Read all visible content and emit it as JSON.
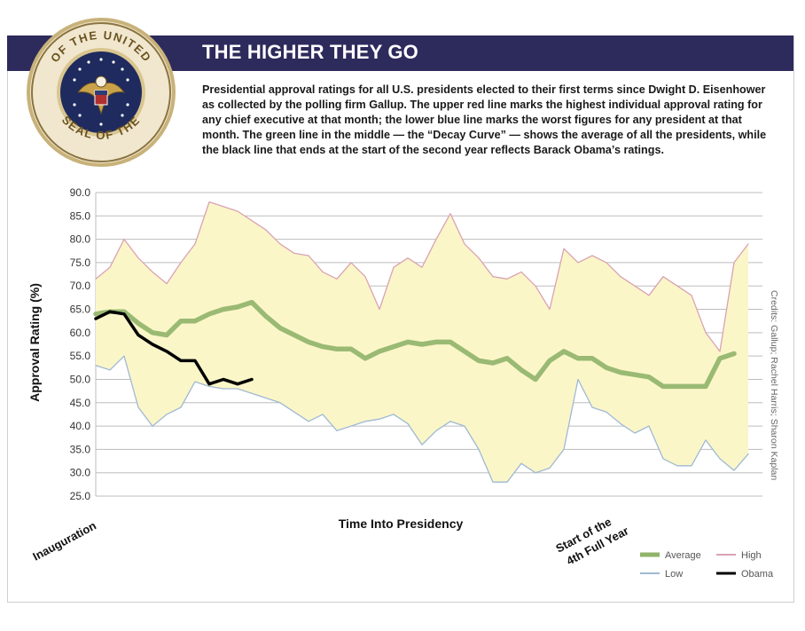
{
  "header": {
    "title": "THE HIGHER THEY GO",
    "description": "Presidential approval ratings for all U.S. presidents elected to their first terms since Dwight D. Eisenhower as collected by the polling firm Gallup. The upper red line marks the highest individual approval rating for any chief executive at that month; the lower blue line marks the worst figures for any president at that month. The green line in the middle — the “Decay Curve” — shows the average of all the presidents, while the black line that ends at the start of the second year reflects Barack Obama’s ratings.",
    "bg_color": "#2d2a5c"
  },
  "seal": {
    "text_top": "OF THE UNITED",
    "text_left": "PRESIDENT",
    "text_right": "STATES",
    "text_bottom": "SEAL OF THE",
    "icon": "presidential-seal-icon"
  },
  "credits": "Credits: Gallup; Rachel Harris; Sharon Kaplan",
  "x_annotations": {
    "inauguration": "Inauguration",
    "start4_line1": "Start of the",
    "start4_line2": "4th Full Year"
  },
  "colors": {
    "high": "#d9a3b3",
    "low": "#9fb9d3",
    "average": "#8fb46a",
    "obama": "#000000",
    "band_fill": "#fbf6c8"
  },
  "chart_data": {
    "type": "line",
    "title": "",
    "xlabel": "Time Into Presidency",
    "ylabel": "Approval Rating (%)",
    "ylim": [
      25,
      90
    ],
    "yticks": [
      "25.0",
      "30.0",
      "35.0",
      "40.0",
      "45.0",
      "50.0",
      "55.0",
      "60.0",
      "65.0",
      "70.0",
      "75.0",
      "80.0",
      "85.0",
      "90.0"
    ],
    "grid": true,
    "legend_position": "bottom-right",
    "x": [
      1,
      2,
      3,
      4,
      5,
      6,
      7,
      8,
      9,
      10,
      11,
      12,
      13,
      14,
      15,
      16,
      17,
      18,
      19,
      20,
      21,
      22,
      23,
      24,
      25,
      26,
      27,
      28,
      29,
      30,
      31,
      32,
      33,
      34,
      35,
      36,
      37,
      38,
      39,
      40,
      41,
      42,
      43,
      44,
      45,
      46,
      47,
      48
    ],
    "series": [
      {
        "name": "High",
        "color": "#d9a3b3",
        "values": [
          71.5,
          74,
          80,
          76,
          73,
          70.5,
          75,
          79,
          88,
          87,
          86,
          84,
          82,
          79,
          77,
          76.5,
          73,
          71.5,
          75,
          72,
          65,
          74,
          76,
          74,
          80,
          85.5,
          79,
          76,
          72,
          71.5,
          73,
          70,
          65,
          78,
          75,
          76.5,
          75,
          72,
          70,
          68,
          72,
          70,
          68,
          60,
          56,
          75,
          79,
          null
        ]
      },
      {
        "name": "Low",
        "color": "#9fb9d3",
        "values": [
          53,
          52,
          55,
          44,
          40,
          42.5,
          44,
          49.5,
          48.5,
          48,
          48,
          47,
          46,
          45,
          43,
          41,
          42.5,
          39,
          40,
          41,
          41.5,
          42.5,
          40.5,
          36,
          39,
          41,
          40,
          35,
          28,
          28,
          32,
          30,
          31,
          35,
          50,
          44,
          43,
          40.5,
          38.5,
          40,
          33,
          31.5,
          31.5,
          37,
          33,
          30.5,
          34,
          null
        ]
      },
      {
        "name": "Average",
        "color": "#8fb46a",
        "values": [
          64,
          64.5,
          64.5,
          62,
          60,
          59.5,
          62.5,
          62.5,
          64,
          65,
          65.5,
          66.5,
          63.5,
          61,
          59.5,
          58,
          57,
          56.5,
          56.5,
          54.5,
          56,
          57,
          58,
          57.5,
          58,
          58,
          56,
          54,
          53.5,
          54.5,
          52,
          50,
          54,
          56,
          54.5,
          54.5,
          52.5,
          51.5,
          51,
          50.5,
          48.5,
          48.5,
          48.5,
          48.5,
          54.5,
          55.5,
          null,
          null
        ]
      },
      {
        "name": "Obama",
        "color": "#000000",
        "values": [
          63,
          64.5,
          64,
          59.5,
          57.5,
          56,
          54,
          54,
          49,
          50,
          49,
          50,
          null,
          null,
          null,
          null,
          null,
          null,
          null,
          null,
          null,
          null,
          null,
          null,
          null,
          null,
          null,
          null,
          null,
          null,
          null,
          null,
          null,
          null,
          null,
          null,
          null,
          null,
          null,
          null,
          null,
          null,
          null,
          null,
          null,
          null,
          null,
          null
        ]
      }
    ]
  }
}
